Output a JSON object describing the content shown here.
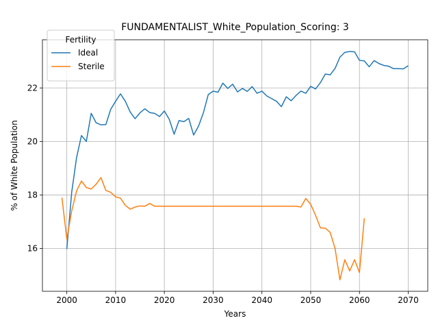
{
  "chart_data": {
    "type": "line",
    "title": "FUNDAMENTALIST_White_Population_Scoring: 3",
    "xlabel": "Years",
    "ylabel": "% of White Population",
    "xlim": [
      1995,
      2074
    ],
    "ylim": [
      14.4,
      23.8
    ],
    "x_ticks": [
      2000,
      2010,
      2020,
      2030,
      2040,
      2050,
      2060,
      2070
    ],
    "y_ticks": [
      16,
      18,
      20,
      22
    ],
    "grid": true,
    "legend": {
      "title": "Fertility",
      "placement": "top-left"
    },
    "series": [
      {
        "name": "Ideal",
        "color": "#1f77b4",
        "x": [
          2000,
          2001,
          2002,
          2003,
          2004,
          2005,
          2006,
          2007,
          2008,
          2009,
          2010,
          2011,
          2012,
          2013,
          2014,
          2015,
          2016,
          2017,
          2018,
          2019,
          2020,
          2021,
          2022,
          2023,
          2024,
          2025,
          2026,
          2027,
          2028,
          2029,
          2030,
          2031,
          2032,
          2033,
          2034,
          2035,
          2036,
          2037,
          2038,
          2039,
          2040,
          2041,
          2042,
          2043,
          2044,
          2045,
          2046,
          2047,
          2048,
          2049,
          2050,
          2051,
          2052,
          2053,
          2054,
          2055,
          2056,
          2057,
          2058,
          2059,
          2060,
          2061,
          2062,
          2063,
          2064,
          2065,
          2066,
          2067,
          2068,
          2069,
          2070
        ],
        "values": [
          15.98,
          18.1,
          19.4,
          20.22,
          20.0,
          21.05,
          20.7,
          20.62,
          20.63,
          21.2,
          21.5,
          21.78,
          21.5,
          21.1,
          20.85,
          21.07,
          21.22,
          21.08,
          21.05,
          20.93,
          21.14,
          20.83,
          20.27,
          20.78,
          20.74,
          20.86,
          20.24,
          20.57,
          21.07,
          21.75,
          21.88,
          21.84,
          22.18,
          21.98,
          22.14,
          21.85,
          21.98,
          21.87,
          22.05,
          21.8,
          21.88,
          21.7,
          21.6,
          21.5,
          21.3,
          21.67,
          21.52,
          21.72,
          21.88,
          21.8,
          22.06,
          21.96,
          22.2,
          22.52,
          22.49,
          22.73,
          23.15,
          23.33,
          23.36,
          23.35,
          23.03,
          23.01,
          22.79,
          23.02,
          22.91,
          22.84,
          22.81,
          22.72,
          22.72,
          22.71,
          22.83
        ]
      },
      {
        "name": "Sterile",
        "color": "#ff7f0e",
        "x": [
          1999,
          2000,
          2001,
          2002,
          2003,
          2004,
          2005,
          2006,
          2007,
          2008,
          2009,
          2010,
          2011,
          2012,
          2013,
          2014,
          2015,
          2016,
          2017,
          2018,
          2019,
          2020,
          2021,
          2022,
          2023,
          2024,
          2025,
          2026,
          2027,
          2028,
          2029,
          2030,
          2031,
          2032,
          2033,
          2034,
          2035,
          2036,
          2037,
          2038,
          2039,
          2040,
          2041,
          2042,
          2043,
          2044,
          2045,
          2046,
          2047,
          2048,
          2049,
          2050,
          2051,
          2052,
          2053,
          2054,
          2055,
          2056,
          2057,
          2058,
          2059,
          2060,
          2061
        ],
        "values": [
          17.9,
          16.35,
          17.4,
          18.15,
          18.52,
          18.28,
          18.22,
          18.4,
          18.65,
          18.17,
          18.1,
          17.93,
          17.88,
          17.61,
          17.47,
          17.55,
          17.59,
          17.58,
          17.68,
          17.58,
          17.58,
          17.58,
          17.58,
          17.58,
          17.58,
          17.58,
          17.58,
          17.58,
          17.58,
          17.58,
          17.58,
          17.58,
          17.58,
          17.58,
          17.58,
          17.58,
          17.58,
          17.58,
          17.58,
          17.58,
          17.58,
          17.58,
          17.58,
          17.58,
          17.58,
          17.58,
          17.58,
          17.58,
          17.58,
          17.55,
          17.87,
          17.65,
          17.24,
          16.77,
          16.76,
          16.6,
          16.0,
          14.83,
          15.58,
          15.16,
          15.58,
          15.1,
          17.13
        ]
      }
    ]
  }
}
